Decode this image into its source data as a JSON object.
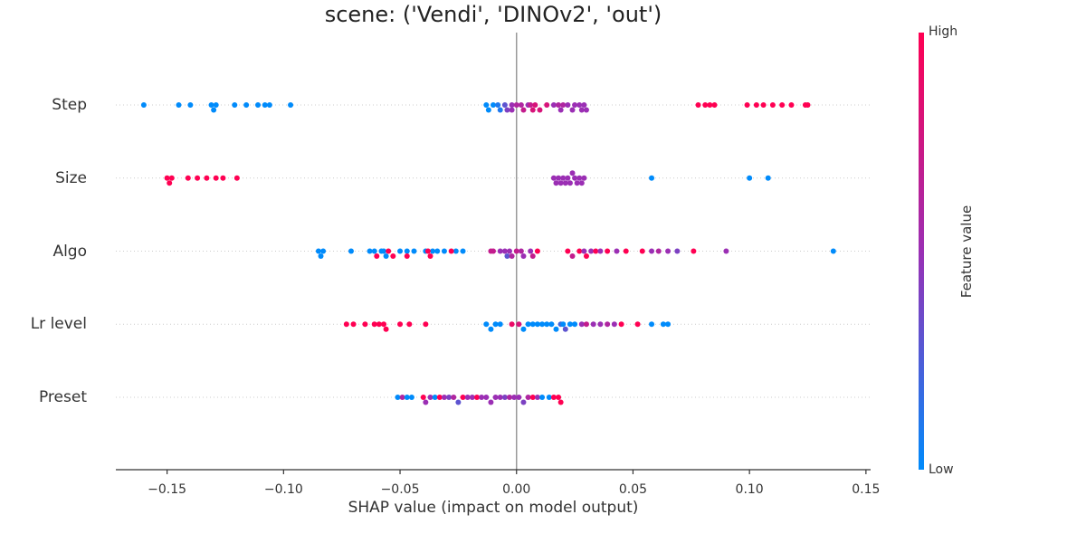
{
  "chart_data": {
    "type": "scatter",
    "subtype": "shap-beeswarm",
    "title": "scene: ('Vendi', 'DINOv2', 'out')",
    "xlabel": "SHAP value (impact on model output)",
    "xlim": [
      -0.172,
      0.152
    ],
    "xticks": [
      "−0.15",
      "−0.10",
      "−0.05",
      "0.00",
      "0.05",
      "0.10",
      "0.15"
    ],
    "xtick_values": [
      -0.15,
      -0.1,
      -0.05,
      0.0,
      0.05,
      0.1,
      0.15
    ],
    "colorbar": {
      "title": "Feature value",
      "high": "High",
      "low": "Low",
      "low_color": "#008bfb",
      "mid_color": "#9b2fb4",
      "high_color": "#ff0052"
    },
    "features": [
      {
        "name": "Step",
        "points": [
          [
            -0.16,
            0
          ],
          [
            -0.145,
            0
          ],
          [
            -0.14,
            0
          ],
          [
            -0.131,
            0
          ],
          [
            -0.13,
            0
          ],
          [
            -0.129,
            0
          ],
          [
            -0.121,
            0
          ],
          [
            -0.116,
            0
          ],
          [
            -0.111,
            0
          ],
          [
            -0.108,
            0
          ],
          [
            -0.106,
            0
          ],
          [
            -0.097,
            0
          ],
          [
            -0.013,
            0
          ],
          [
            -0.012,
            0
          ],
          [
            -0.01,
            0
          ],
          [
            -0.008,
            0.1
          ],
          [
            -0.007,
            0.1
          ],
          [
            -0.005,
            0.3
          ],
          [
            -0.004,
            0.4
          ],
          [
            -0.002,
            0.5
          ],
          [
            -0.002,
            0.5
          ],
          [
            0.0,
            0.6
          ],
          [
            0.002,
            0.6
          ],
          [
            0.003,
            0.7
          ],
          [
            0.005,
            0.5
          ],
          [
            0.006,
            0.7
          ],
          [
            0.007,
            0.8
          ],
          [
            0.008,
            0.8
          ],
          [
            0.01,
            0.8
          ],
          [
            0.013,
            0.8
          ],
          [
            0.016,
            0.5
          ],
          [
            0.018,
            0.6
          ],
          [
            0.019,
            0.5
          ],
          [
            0.02,
            0.6
          ],
          [
            0.022,
            0.5
          ],
          [
            0.024,
            0.5
          ],
          [
            0.025,
            0.5
          ],
          [
            0.027,
            0.5
          ],
          [
            0.028,
            0.5
          ],
          [
            0.029,
            0.5
          ],
          [
            0.03,
            0.5
          ],
          [
            0.078,
            1
          ],
          [
            0.081,
            1
          ],
          [
            0.083,
            1
          ],
          [
            0.085,
            1
          ],
          [
            0.099,
            1
          ],
          [
            0.103,
            1
          ],
          [
            0.106,
            1
          ],
          [
            0.11,
            1
          ],
          [
            0.114,
            1
          ],
          [
            0.118,
            1
          ],
          [
            0.124,
            1
          ],
          [
            0.125,
            1
          ]
        ]
      },
      {
        "name": "Size",
        "points": [
          [
            -0.15,
            1
          ],
          [
            -0.149,
            1
          ],
          [
            -0.148,
            1
          ],
          [
            -0.141,
            1
          ],
          [
            -0.137,
            1
          ],
          [
            -0.133,
            1
          ],
          [
            -0.129,
            1
          ],
          [
            -0.126,
            1
          ],
          [
            -0.12,
            1
          ],
          [
            0.016,
            0.5
          ],
          [
            0.017,
            0.5
          ],
          [
            0.018,
            0.5
          ],
          [
            0.019,
            0.5
          ],
          [
            0.02,
            0.5
          ],
          [
            0.021,
            0.5
          ],
          [
            0.022,
            0.5
          ],
          [
            0.023,
            0.5
          ],
          [
            0.024,
            0.5
          ],
          [
            0.025,
            0.5
          ],
          [
            0.026,
            0.5
          ],
          [
            0.027,
            0.5
          ],
          [
            0.028,
            0.5
          ],
          [
            0.029,
            0.5
          ],
          [
            0.058,
            0
          ],
          [
            0.1,
            0
          ],
          [
            0.108,
            0
          ]
        ]
      },
      {
        "name": "Algo",
        "points": [
          [
            -0.085,
            0
          ],
          [
            -0.084,
            0
          ],
          [
            -0.083,
            0
          ],
          [
            -0.071,
            0
          ],
          [
            -0.063,
            0
          ],
          [
            -0.061,
            0
          ],
          [
            -0.058,
            0
          ],
          [
            -0.057,
            0
          ],
          [
            -0.056,
            0
          ],
          [
            -0.05,
            0
          ],
          [
            -0.047,
            0
          ],
          [
            -0.044,
            0
          ],
          [
            -0.039,
            0
          ],
          [
            -0.036,
            0
          ],
          [
            -0.034,
            0
          ],
          [
            -0.031,
            0
          ],
          [
            -0.026,
            0
          ],
          [
            -0.023,
            0
          ],
          [
            -0.06,
            1
          ],
          [
            -0.055,
            1
          ],
          [
            -0.053,
            1
          ],
          [
            -0.047,
            1
          ],
          [
            -0.038,
            1
          ],
          [
            -0.037,
            1
          ],
          [
            -0.028,
            1
          ],
          [
            -0.011,
            0.7
          ],
          [
            -0.01,
            0.7
          ],
          [
            -0.007,
            0.5
          ],
          [
            -0.005,
            0.5
          ],
          [
            -0.004,
            0.3
          ],
          [
            -0.003,
            0.5
          ],
          [
            -0.002,
            0.6
          ],
          [
            0.0,
            0.7
          ],
          [
            0.002,
            0.6
          ],
          [
            0.003,
            0.5
          ],
          [
            0.006,
            0.5
          ],
          [
            0.007,
            0.7
          ],
          [
            0.009,
            1
          ],
          [
            0.022,
            1
          ],
          [
            0.024,
            0.7
          ],
          [
            0.027,
            1
          ],
          [
            0.029,
            0.5
          ],
          [
            0.03,
            1
          ],
          [
            0.032,
            0.5
          ],
          [
            0.034,
            1
          ],
          [
            0.036,
            0.5
          ],
          [
            0.039,
            1
          ],
          [
            0.043,
            0.5
          ],
          [
            0.047,
            1
          ],
          [
            0.054,
            1
          ],
          [
            0.058,
            0.5
          ],
          [
            0.061,
            0.6
          ],
          [
            0.065,
            0.5
          ],
          [
            0.069,
            0.4
          ],
          [
            0.076,
            1
          ],
          [
            0.09,
            0.5
          ],
          [
            0.136,
            0
          ]
        ]
      },
      {
        "name": "Lr level",
        "points": [
          [
            -0.073,
            1
          ],
          [
            -0.07,
            1
          ],
          [
            -0.065,
            1
          ],
          [
            -0.061,
            1
          ],
          [
            -0.059,
            1
          ],
          [
            -0.057,
            1
          ],
          [
            -0.056,
            1
          ],
          [
            -0.05,
            1
          ],
          [
            -0.046,
            1
          ],
          [
            -0.039,
            1
          ],
          [
            -0.013,
            0
          ],
          [
            -0.011,
            0
          ],
          [
            -0.009,
            0
          ],
          [
            -0.007,
            0
          ],
          [
            -0.002,
            0.9
          ],
          [
            0.001,
            0.8
          ],
          [
            0.003,
            0
          ],
          [
            0.005,
            0
          ],
          [
            0.007,
            0
          ],
          [
            0.009,
            0
          ],
          [
            0.011,
            0
          ],
          [
            0.013,
            0
          ],
          [
            0.015,
            0
          ],
          [
            0.017,
            0
          ],
          [
            0.019,
            0.2
          ],
          [
            0.02,
            0
          ],
          [
            0.021,
            0.3
          ],
          [
            0.023,
            0
          ],
          [
            0.025,
            0
          ],
          [
            0.028,
            0.5
          ],
          [
            0.03,
            0.7
          ],
          [
            0.033,
            0.5
          ],
          [
            0.036,
            0.5
          ],
          [
            0.039,
            0.6
          ],
          [
            0.042,
            0.5
          ],
          [
            0.045,
            1
          ],
          [
            0.052,
            1
          ],
          [
            0.058,
            0
          ],
          [
            0.063,
            0
          ],
          [
            0.065,
            0
          ]
        ]
      },
      {
        "name": "Preset",
        "points": [
          [
            -0.051,
            0
          ],
          [
            -0.049,
            0.6
          ],
          [
            -0.047,
            0
          ],
          [
            -0.045,
            0
          ],
          [
            -0.04,
            1
          ],
          [
            -0.039,
            0.5
          ],
          [
            -0.037,
            0.5
          ],
          [
            -0.035,
            0
          ],
          [
            -0.033,
            1
          ],
          [
            -0.031,
            0.5
          ],
          [
            -0.029,
            0.4
          ],
          [
            -0.027,
            0.6
          ],
          [
            -0.025,
            0.3
          ],
          [
            -0.023,
            1
          ],
          [
            -0.021,
            0.5
          ],
          [
            -0.019,
            0.5
          ],
          [
            -0.017,
            1
          ],
          [
            -0.015,
            0.5
          ],
          [
            -0.013,
            0.5
          ],
          [
            -0.011,
            0.5
          ],
          [
            -0.009,
            0.5
          ],
          [
            -0.007,
            0.5
          ],
          [
            -0.005,
            0.4
          ],
          [
            -0.003,
            0.6
          ],
          [
            -0.001,
            0.5
          ],
          [
            0.001,
            0.5
          ],
          [
            0.003,
            0.4
          ],
          [
            0.005,
            0.6
          ],
          [
            0.007,
            1
          ],
          [
            0.009,
            0.5
          ],
          [
            0.011,
            0
          ],
          [
            0.014,
            0
          ],
          [
            0.016,
            1
          ],
          [
            0.018,
            1
          ],
          [
            0.019,
            1
          ]
        ]
      }
    ]
  }
}
